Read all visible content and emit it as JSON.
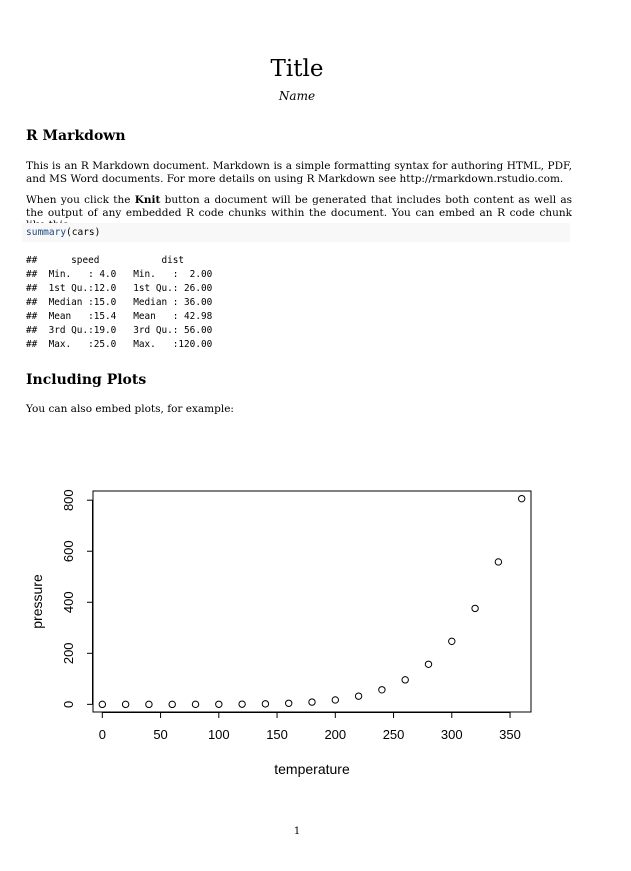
{
  "document": {
    "title": "Title",
    "author": "Name",
    "page_number": "1"
  },
  "section1": {
    "heading": "R Markdown",
    "p1": "This is an R Markdown document. Markdown is a simple formatting syntax for authoring HTML, PDF, and MS Word documents. For more details on using R Markdown see http://rmarkdown.rstudio.com.",
    "p2_before": "When you click the ",
    "p2_bold": "Knit",
    "p2_after": " button a document will be generated that includes both content as well as the output of any embedded R code chunks within the document. You can embed an R code chunk like this:",
    "code_fn": "summary",
    "code_args": "(cars)",
    "output_lines": [
      "##      speed           dist       ",
      "##  Min.   : 4.0   Min.   :  2.00  ",
      "##  1st Qu.:12.0   1st Qu.: 26.00  ",
      "##  Median :15.0   Median : 36.00  ",
      "##  Mean   :15.4   Mean   : 42.98  ",
      "##  3rd Qu.:19.0   3rd Qu.: 56.00  ",
      "##  Max.   :25.0   Max.   :120.00  "
    ]
  },
  "section2": {
    "heading": "Including Plots",
    "p1": "You can also embed plots, for example:"
  },
  "chart_data": {
    "type": "scatter",
    "xlabel": "temperature",
    "ylabel": "pressure",
    "xlim": [
      -8,
      368
    ],
    "ylim": [
      -30,
      836
    ],
    "xticks": [
      0,
      50,
      100,
      150,
      200,
      250,
      300,
      350
    ],
    "yticks": [
      0,
      200,
      400,
      600,
      800
    ],
    "grid": false,
    "marker": "open-circle",
    "x": [
      0,
      20,
      40,
      60,
      80,
      100,
      120,
      140,
      160,
      180,
      200,
      220,
      240,
      260,
      280,
      300,
      320,
      340,
      360
    ],
    "y": [
      0.0002,
      0.0012,
      0.006,
      0.03,
      0.09,
      0.27,
      0.75,
      1.85,
      4.2,
      8.8,
      17.3,
      32.1,
      57,
      96,
      157,
      247,
      376,
      558,
      806
    ]
  }
}
